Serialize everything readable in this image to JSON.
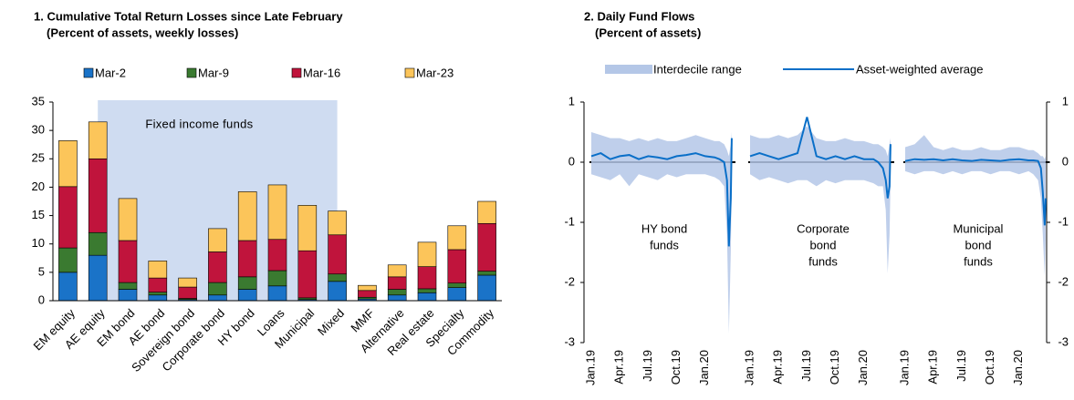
{
  "chart_data": [
    {
      "type": "bar",
      "stacked": true,
      "title": "1. Cumulative Total Return Losses since Late February",
      "subtitle": "(Percent of assets, weekly losses)",
      "annotation": "Fixed income funds",
      "categories": [
        "EM equity",
        "AE equity",
        "EM bond",
        "AE bond",
        "Sovereign bond",
        "Corporate bond",
        "HY bond",
        "Loans",
        "Municipal",
        "Mixed",
        "MMF",
        "Alternative",
        "Real estate",
        "Specialty",
        "Commodity"
      ],
      "series": [
        {
          "name": "Mar-2",
          "color": "#1a73c8",
          "values": [
            5,
            8,
            2,
            1,
            0.2,
            1,
            2,
            2.6,
            0.2,
            3.4,
            0.3,
            1,
            1.4,
            2.3,
            4.5
          ]
        },
        {
          "name": "Mar-9",
          "color": "#3a7a30",
          "values": [
            4.3,
            4,
            1.2,
            0.5,
            0.2,
            2.2,
            2.2,
            2.7,
            0.3,
            1.3,
            0.3,
            1,
            0.7,
            0.8,
            0.7
          ]
        },
        {
          "name": "Mar-16",
          "color": "#c0143c",
          "values": [
            10.8,
            13,
            7.4,
            2.5,
            2,
            5.4,
            6.4,
            5.5,
            8.3,
            6.9,
            1.2,
            2.2,
            3.9,
            5.9,
            8.4
          ]
        },
        {
          "name": "Mar-23",
          "color": "#fcc55a",
          "values": [
            8.1,
            6.5,
            7.4,
            3,
            1.6,
            4.1,
            8.6,
            9.6,
            8,
            4.2,
            0.9,
            2.1,
            4.3,
            4.2,
            3.9
          ]
        }
      ],
      "ylim": [
        0,
        35
      ],
      "yticks": [
        0,
        5,
        10,
        15,
        20,
        25,
        30,
        35
      ]
    },
    {
      "type": "line",
      "title": "2. Daily Fund Flows",
      "subtitle": "(Percent of assets)",
      "series": [
        {
          "name": "Interdecile range",
          "color": "#b4c7e7"
        },
        {
          "name": "Asset-weighted average",
          "color": "#0a6fc8"
        }
      ],
      "xlim": [
        0,
        15
      ],
      "xticks": [
        {
          "value": 0,
          "label": "Jan.19"
        },
        {
          "value": 3,
          "label": "Apr.19"
        },
        {
          "value": 6,
          "label": "Jul.19"
        },
        {
          "value": 9,
          "label": "Oct.19"
        },
        {
          "value": 12,
          "label": "Jan.20"
        }
      ],
      "ylim": [
        -3,
        1
      ],
      "yticks": [
        -3,
        -2,
        -1,
        0,
        1
      ],
      "y2lim": [
        -3,
        1
      ],
      "y2ticks": [
        -3,
        -2,
        -1,
        0,
        1
      ],
      "panels": [
        {
          "label": [
            "HY bond",
            "funds"
          ],
          "x": [
            0,
            1,
            2,
            3,
            4,
            5,
            6,
            7,
            8,
            9,
            10,
            11,
            12,
            13,
            13.5,
            14,
            14.3,
            14.5,
            14.7,
            14.8
          ],
          "low": [
            -0.2,
            -0.25,
            -0.3,
            -0.2,
            -0.4,
            -0.2,
            -0.25,
            -0.3,
            -0.2,
            -0.25,
            -0.2,
            -0.2,
            -0.2,
            -0.25,
            -0.3,
            -0.4,
            -1.2,
            -2.85,
            -1.5,
            -0.3
          ],
          "high": [
            0.5,
            0.45,
            0.4,
            0.4,
            0.35,
            0.4,
            0.35,
            0.4,
            0.35,
            0.35,
            0.4,
            0.45,
            0.4,
            0.35,
            0.35,
            0.3,
            0.2,
            0.1,
            0.3,
            0.5
          ],
          "values": [
            0.1,
            0.15,
            0.05,
            0.1,
            0.12,
            0.05,
            0.1,
            0.08,
            0.05,
            0.1,
            0.12,
            0.15,
            0.1,
            0.08,
            0.05,
            0,
            -0.3,
            -1.4,
            -0.6,
            0.4
          ]
        },
        {
          "label": [
            "Corporate",
            "bond",
            "funds"
          ],
          "x": [
            0,
            1,
            2,
            3,
            4,
            5,
            6,
            7,
            8,
            9,
            10,
            11,
            12,
            13,
            13.5,
            14,
            14.3,
            14.5,
            14.7,
            14.8
          ],
          "low": [
            -0.2,
            -0.3,
            -0.25,
            -0.3,
            -0.35,
            -0.3,
            -0.3,
            -0.4,
            -0.3,
            -0.35,
            -0.3,
            -0.3,
            -0.3,
            -0.35,
            -0.4,
            -0.4,
            -0.8,
            -1.85,
            -1.2,
            -0.3
          ],
          "high": [
            0.45,
            0.4,
            0.4,
            0.45,
            0.4,
            0.45,
            0.6,
            0.4,
            0.35,
            0.35,
            0.4,
            0.35,
            0.35,
            0.3,
            0.3,
            0.25,
            0.2,
            0.1,
            0.3,
            0.4
          ],
          "values": [
            0.1,
            0.15,
            0.1,
            0.05,
            0.1,
            0.15,
            0.75,
            0.1,
            0.05,
            0.1,
            0.05,
            0.1,
            0.05,
            0.05,
            0,
            -0.1,
            -0.3,
            -0.6,
            -0.4,
            0.3
          ]
        },
        {
          "label": [
            "Municipal",
            "bond",
            "funds"
          ],
          "x": [
            0,
            1,
            2,
            3,
            4,
            5,
            6,
            7,
            8,
            9,
            10,
            11,
            12,
            13,
            13.5,
            14,
            14.3,
            14.5,
            14.7,
            14.8
          ],
          "low": [
            -0.15,
            -0.2,
            -0.15,
            -0.15,
            -0.2,
            -0.15,
            -0.2,
            -0.15,
            -0.15,
            -0.2,
            -0.15,
            -0.15,
            -0.2,
            -0.15,
            -0.2,
            -0.3,
            -0.6,
            -1.2,
            -1.9,
            -1.3
          ],
          "high": [
            0.25,
            0.3,
            0.45,
            0.25,
            0.2,
            0.25,
            0.2,
            0.2,
            0.25,
            0.2,
            0.2,
            0.25,
            0.25,
            0.2,
            0.2,
            0.15,
            0.1,
            0.1,
            0.05,
            0.1
          ],
          "values": [
            0.02,
            0.05,
            0.04,
            0.05,
            0.03,
            0.05,
            0.03,
            0.02,
            0.04,
            0.03,
            0.02,
            0.04,
            0.05,
            0.03,
            0.03,
            0.02,
            -0.1,
            -0.5,
            -1.05,
            -0.6
          ]
        }
      ]
    }
  ]
}
